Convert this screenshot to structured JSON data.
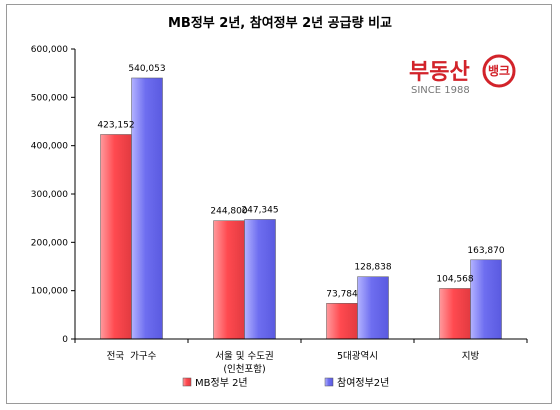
{
  "chart_data": {
    "type": "bar",
    "title": "MB정부 2년, 참여정부 2년 공급량 비교",
    "categories": [
      [
        "전국  가구수"
      ],
      [
        "서울 및 수도권",
        "(인천포함)"
      ],
      [
        "5대광역시"
      ],
      [
        "지방"
      ]
    ],
    "series": [
      {
        "name": "MB정부 2년",
        "values": [
          423152,
          244800,
          73784,
          104568
        ],
        "labels": [
          "423,152",
          "244,800",
          "73,784",
          "104,568"
        ],
        "color": "#ff5a5f"
      },
      {
        "name": "참여정부2년",
        "values": [
          540053,
          247345,
          128838,
          163870
        ],
        "labels": [
          "540,053",
          "247,345",
          "128,838",
          "163,870"
        ],
        "color": "#7a7af0"
      }
    ],
    "ylim": [
      0,
      600000
    ],
    "yticks": [
      "0",
      "100,000",
      "200,000",
      "300,000",
      "400,000",
      "500,000",
      "600,000"
    ],
    "legend_position": "bottom"
  },
  "logo": {
    "main": "부동산",
    "circle": "뱅크",
    "sub": "SINCE 1988"
  }
}
